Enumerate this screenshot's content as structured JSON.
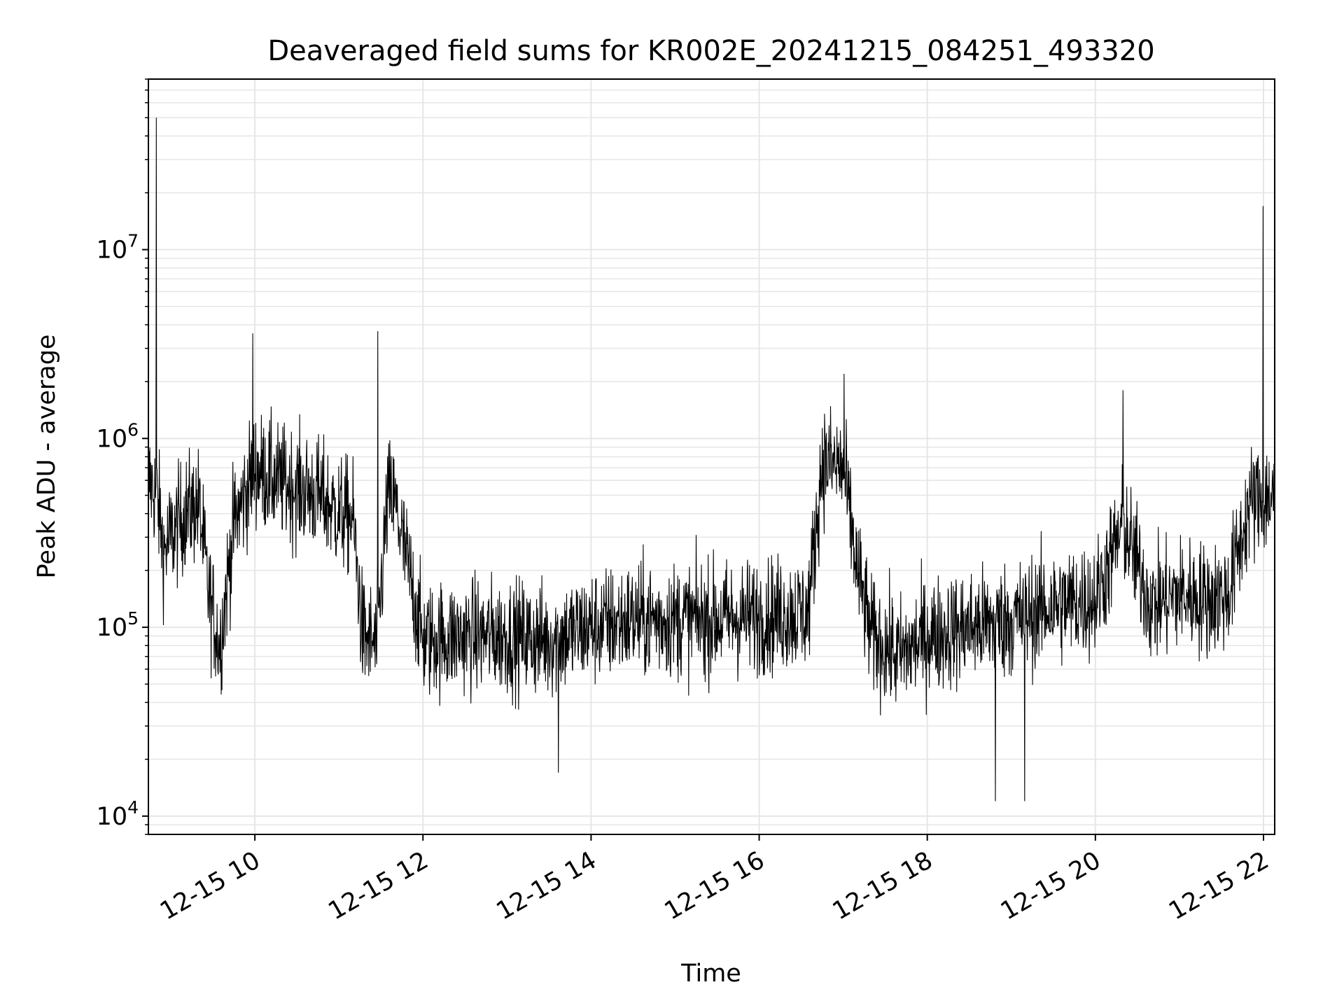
{
  "chart_data": {
    "type": "line",
    "title": "Deaveraged field sums for KR002E_20241215_084251_493320",
    "xlabel": "Time",
    "ylabel": "Peak ADU - average",
    "yscale": "log",
    "xlim": [
      "12-15 08:44",
      "12-15 22:08"
    ],
    "ylim": [
      8000,
      80000000
    ],
    "grid": true,
    "x_ticks": [
      {
        "t": "12-15 10:00",
        "label": "12-15 10"
      },
      {
        "t": "12-15 12:00",
        "label": "12-15 12"
      },
      {
        "t": "12-15 14:00",
        "label": "12-15 14"
      },
      {
        "t": "12-15 16:00",
        "label": "12-15 16"
      },
      {
        "t": "12-15 18:00",
        "label": "12-15 18"
      },
      {
        "t": "12-15 20:00",
        "label": "12-15 20"
      },
      {
        "t": "12-15 22:00",
        "label": "12-15 22"
      }
    ],
    "y_ticks": [
      {
        "value": 10000,
        "label_base": "10",
        "label_exp": "4"
      },
      {
        "value": 100000,
        "label_base": "10",
        "label_exp": "5"
      },
      {
        "value": 1000000,
        "label_base": "10",
        "label_exp": "6"
      },
      {
        "value": 10000000,
        "label_base": "10",
        "label_exp": "7"
      }
    ],
    "series": [
      {
        "color": "#000000",
        "x": [
          "12-15 08:44",
          "12-15 08:50",
          "12-15 08:55",
          "12-15 09:00",
          "12-15 09:10",
          "12-15 09:20",
          "12-15 09:27",
          "12-15 09:35",
          "12-15 09:45",
          "12-15 10:00",
          "12-15 10:15",
          "12-15 10:30",
          "12-15 10:45",
          "12-15 11:00",
          "12-15 11:10",
          "12-15 11:17",
          "12-15 11:27",
          "12-15 11:35",
          "12-15 11:40",
          "12-15 12:00",
          "12-15 12:30",
          "12-15 13:00",
          "12-15 13:30",
          "12-15 14:00",
          "12-15 14:30",
          "12-15 15:00",
          "12-15 15:30",
          "12-15 16:00",
          "12-15 16:35",
          "12-15 16:45",
          "12-15 17:00",
          "12-15 17:10",
          "12-15 17:20",
          "12-15 17:40",
          "12-15 18:00",
          "12-15 18:30",
          "12-15 19:00",
          "12-15 19:30",
          "12-15 20:00",
          "12-15 20:20",
          "12-15 20:40",
          "12-15 21:00",
          "12-15 21:20",
          "12-15 21:35",
          "12-15 21:50",
          "12-15 22:08"
        ],
        "y": [
          600000,
          500000,
          250000,
          300000,
          400000,
          450000,
          150000,
          80000,
          350000,
          700000,
          600000,
          550000,
          500000,
          400000,
          380000,
          90000,
          80000,
          500000,
          450000,
          85000,
          90000,
          90000,
          85000,
          100000,
          110000,
          110000,
          110000,
          115000,
          120000,
          750000,
          700000,
          200000,
          90000,
          70000,
          90000,
          100000,
          110000,
          130000,
          140000,
          350000,
          130000,
          150000,
          140000,
          150000,
          450000,
          500000
        ]
      }
    ],
    "spikes": [
      {
        "t": "12-15 08:50",
        "value": 50000000
      },
      {
        "t": "12-15 22:00",
        "value": 17000000
      },
      {
        "t": "12-15 09:59",
        "value": 3600000
      },
      {
        "t": "12-15 11:28",
        "value": 3700000
      },
      {
        "t": "12-15 17:01",
        "value": 2200000
      },
      {
        "t": "12-15 20:20",
        "value": 1800000
      },
      {
        "t": "12-15 18:49",
        "value": 12000
      },
      {
        "t": "12-15 19:10",
        "value": 12000
      },
      {
        "t": "12-15 13:37",
        "value": 17000
      }
    ]
  }
}
